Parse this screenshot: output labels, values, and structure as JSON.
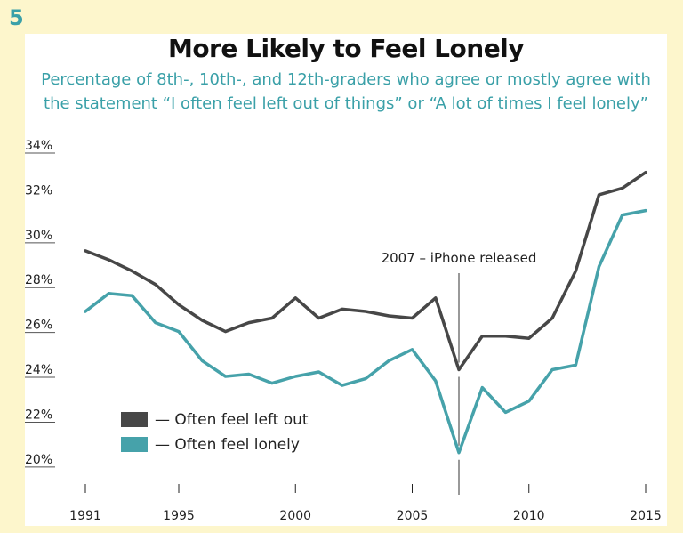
{
  "slide_number": "5",
  "chart_data": {
    "type": "line",
    "title": "More Likely to Feel Lonely",
    "subtitle_lines": [
      "Percentage of 8th-, 10th-, and 12th-graders who agree or mostly agree with",
      "the statement “I often feel left out of things” or “A lot of times I feel lonely”"
    ],
    "xlim": [
      1991,
      2015
    ],
    "ylim": [
      19.2,
      34.2
    ],
    "x_ticks": [
      1991,
      1995,
      2000,
      2005,
      2010,
      2015
    ],
    "y_ticks": [
      20,
      22,
      24,
      26,
      28,
      30,
      32,
      34
    ],
    "y_tick_labels": [
      "20%",
      "22%",
      "24%",
      "26%",
      "28%",
      "30%",
      "32%",
      "34%"
    ],
    "grid": false,
    "legend_position": "bottom-left",
    "annotations": [
      {
        "x": 2007,
        "label": "2007 – iPhone released"
      }
    ],
    "series": [
      {
        "name": "— Often feel left out",
        "color": "#474747",
        "points": [
          [
            1991,
            29.6
          ],
          [
            1992,
            29.2
          ],
          [
            1993,
            28.7
          ],
          [
            1994,
            28.1
          ],
          [
            1995,
            27.2
          ],
          [
            1996,
            26.5
          ],
          [
            1997,
            26.0
          ],
          [
            1998,
            26.4
          ],
          [
            1999,
            26.6
          ],
          [
            2000,
            27.5
          ],
          [
            2001,
            26.6
          ],
          [
            2002,
            27.0
          ],
          [
            2003,
            26.9
          ],
          [
            2004,
            26.7
          ],
          [
            2005,
            26.6
          ],
          [
            2006,
            27.5
          ],
          [
            2007,
            24.3
          ],
          [
            2008,
            25.8
          ],
          [
            2009,
            25.8
          ],
          [
            2010,
            25.7
          ],
          [
            2011,
            26.6
          ],
          [
            2012,
            28.7
          ],
          [
            2013,
            32.1
          ],
          [
            2014,
            32.4
          ],
          [
            2015,
            33.1
          ]
        ]
      },
      {
        "name": "— Often feel lonely",
        "color": "#46a2aa",
        "points": [
          [
            1991,
            26.9
          ],
          [
            1992,
            27.7
          ],
          [
            1993,
            27.6
          ],
          [
            1994,
            26.4
          ],
          [
            1995,
            26.0
          ],
          [
            1996,
            24.7
          ],
          [
            1997,
            24.0
          ],
          [
            1998,
            24.1
          ],
          [
            1999,
            23.7
          ],
          [
            2000,
            24.0
          ],
          [
            2001,
            24.2
          ],
          [
            2002,
            23.6
          ],
          [
            2003,
            23.9
          ],
          [
            2004,
            24.7
          ],
          [
            2005,
            25.2
          ],
          [
            2006,
            23.8
          ],
          [
            2007,
            20.6
          ],
          [
            2008,
            23.5
          ],
          [
            2009,
            22.4
          ],
          [
            2010,
            22.9
          ],
          [
            2011,
            24.3
          ],
          [
            2012,
            24.5
          ],
          [
            2013,
            28.9
          ],
          [
            2014,
            31.2
          ],
          [
            2015,
            31.4
          ]
        ]
      }
    ]
  }
}
